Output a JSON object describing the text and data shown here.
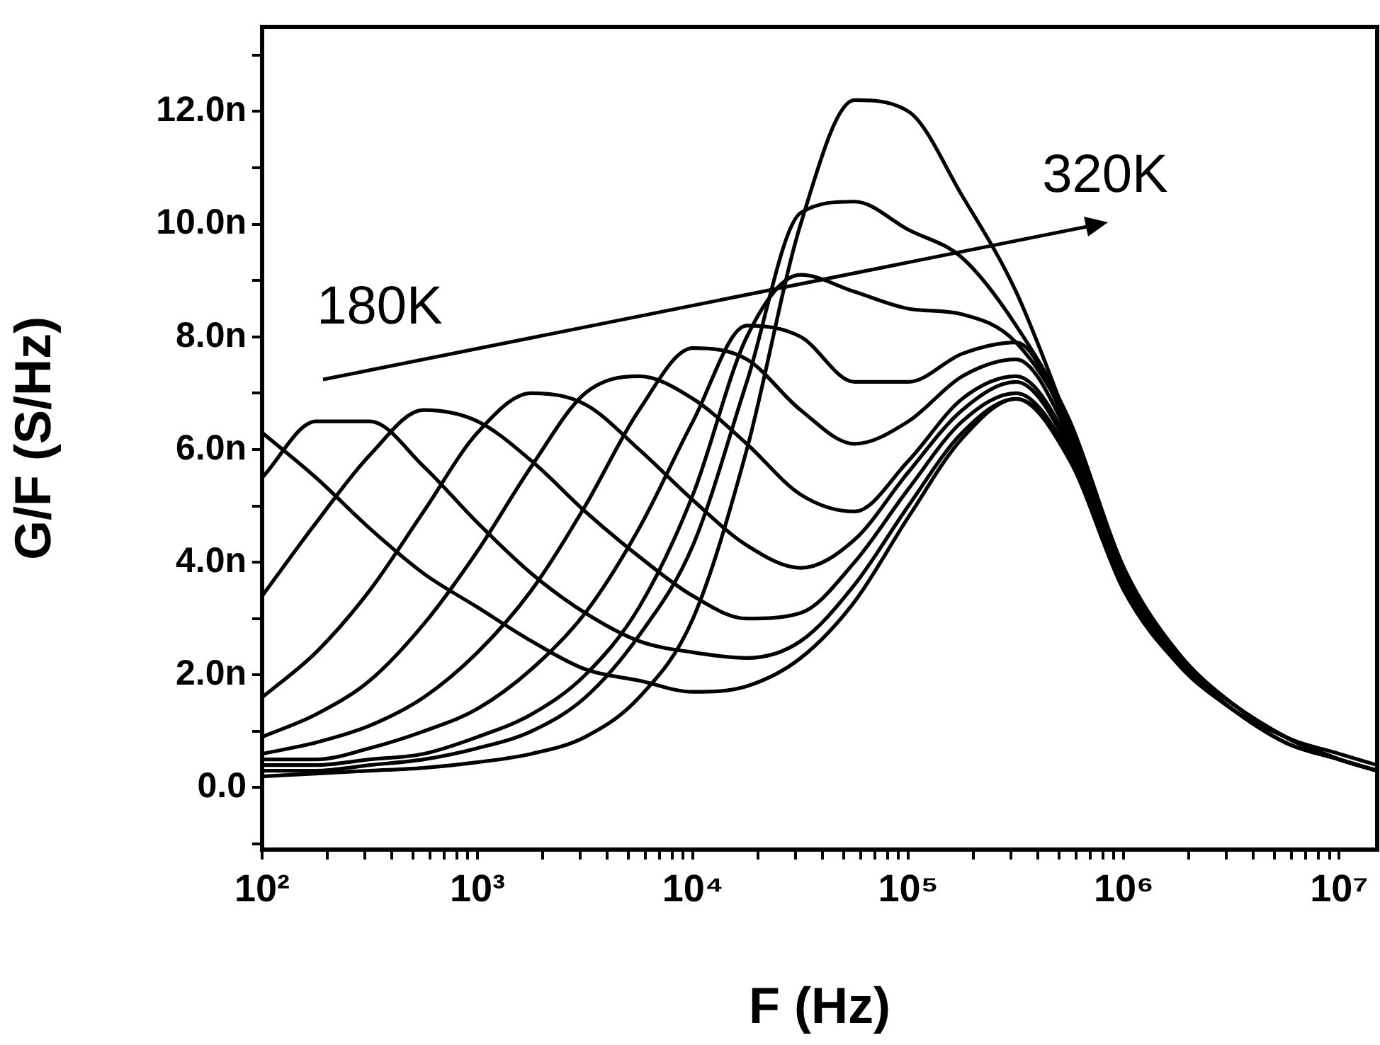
{
  "chart_data": {
    "type": "line",
    "xlabel": "F (Hz)",
    "ylabel": "G/F (S/Hz)",
    "log": "x",
    "grid": false,
    "legend": false,
    "marker": "none",
    "x": [
      100,
      178,
      316,
      562,
      1000,
      1778,
      3162,
      5623,
      10000,
      17783,
      31623,
      56234,
      100000,
      177828,
      316228,
      562341,
      1000000,
      1778279,
      3162278,
      5623413,
      10000000,
      15000000
    ],
    "xlim": [
      100,
      15000000
    ],
    "ylim": [
      -1.1,
      13.5
    ],
    "xticks": [
      {
        "value": 100,
        "label": "10²"
      },
      {
        "value": 200,
        "label": null
      },
      {
        "value": 300,
        "label": null
      },
      {
        "value": 400,
        "label": null
      },
      {
        "value": 500,
        "label": null
      },
      {
        "value": 600,
        "label": null
      },
      {
        "value": 700,
        "label": null
      },
      {
        "value": 800,
        "label": null
      },
      {
        "value": 900,
        "label": null
      },
      {
        "value": 1000,
        "label": "10³"
      },
      {
        "value": 2000,
        "label": null
      },
      {
        "value": 3000,
        "label": null
      },
      {
        "value": 4000,
        "label": null
      },
      {
        "value": 5000,
        "label": null
      },
      {
        "value": 6000,
        "label": null
      },
      {
        "value": 7000,
        "label": null
      },
      {
        "value": 8000,
        "label": null
      },
      {
        "value": 9000,
        "label": null
      },
      {
        "value": 10000,
        "label": "10⁴"
      },
      {
        "value": 20000,
        "label": null
      },
      {
        "value": 30000,
        "label": null
      },
      {
        "value": 40000,
        "label": null
      },
      {
        "value": 50000,
        "label": null
      },
      {
        "value": 60000,
        "label": null
      },
      {
        "value": 70000,
        "label": null
      },
      {
        "value": 80000,
        "label": null
      },
      {
        "value": 90000,
        "label": null
      },
      {
        "value": 100000,
        "label": "10⁵"
      },
      {
        "value": 200000,
        "label": null
      },
      {
        "value": 300000,
        "label": null
      },
      {
        "value": 400000,
        "label": null
      },
      {
        "value": 500000,
        "label": null
      },
      {
        "value": 600000,
        "label": null
      },
      {
        "value": 700000,
        "label": null
      },
      {
        "value": 800000,
        "label": null
      },
      {
        "value": 900000,
        "label": null
      },
      {
        "value": 1000000,
        "label": "10⁶"
      },
      {
        "value": 2000000,
        "label": null
      },
      {
        "value": 3000000,
        "label": null
      },
      {
        "value": 4000000,
        "label": null
      },
      {
        "value": 5000000,
        "label": null
      },
      {
        "value": 6000000,
        "label": null
      },
      {
        "value": 7000000,
        "label": null
      },
      {
        "value": 8000000,
        "label": null
      },
      {
        "value": 9000000,
        "label": null
      },
      {
        "value": 10000000,
        "label": "10⁷"
      }
    ],
    "yticks": [
      {
        "value": -1,
        "label": null
      },
      {
        "value": 0,
        "label": "0.0"
      },
      {
        "value": 1,
        "label": null
      },
      {
        "value": 2,
        "label": "2.0n"
      },
      {
        "value": 3,
        "label": null
      },
      {
        "value": 4,
        "label": "4.0n"
      },
      {
        "value": 5,
        "label": null
      },
      {
        "value": 6,
        "label": "6.0n"
      },
      {
        "value": 7,
        "label": null
      },
      {
        "value": 8,
        "label": "8.0n"
      },
      {
        "value": 9,
        "label": null
      },
      {
        "value": 10,
        "label": "10.0n"
      },
      {
        "value": 11,
        "label": null
      },
      {
        "value": 12,
        "label": "12.0n"
      },
      {
        "value": 13,
        "label": null
      }
    ],
    "annotations": [
      "180K",
      "320K"
    ],
    "series": [
      {
        "color": "#000000",
        "values": [
          6.3,
          5.5,
          4.6,
          3.8,
          3.2,
          2.6,
          2.1,
          1.9,
          1.7,
          1.8,
          2.3,
          3.3,
          4.8,
          6.2,
          6.9,
          5.8,
          3.5,
          2.2,
          1.4,
          0.8,
          0.5,
          0.3
        ]
      },
      {
        "color": "#000000",
        "values": [
          5.5,
          6.5,
          6.5,
          5.7,
          4.7,
          3.8,
          3.1,
          2.6,
          2.4,
          2.3,
          2.6,
          3.6,
          5.0,
          6.3,
          6.9,
          5.9,
          3.6,
          2.2,
          1.4,
          0.8,
          0.5,
          0.3
        ]
      },
      {
        "color": "#000000",
        "values": [
          3.4,
          4.7,
          5.9,
          6.7,
          6.5,
          5.8,
          4.9,
          4.1,
          3.4,
          3.0,
          3.1,
          4.0,
          5.3,
          6.5,
          7.0,
          5.9,
          3.6,
          2.2,
          1.4,
          0.8,
          0.5,
          0.3
        ]
      },
      {
        "color": "#000000",
        "values": [
          1.6,
          2.4,
          3.5,
          4.9,
          6.3,
          7.0,
          6.8,
          6.0,
          5.1,
          4.3,
          3.9,
          4.4,
          5.6,
          6.7,
          7.2,
          6.0,
          3.6,
          2.3,
          1.4,
          0.9,
          0.5,
          0.3
        ]
      },
      {
        "color": "#000000",
        "values": [
          0.9,
          1.3,
          1.9,
          2.9,
          4.2,
          5.7,
          7.0,
          7.3,
          6.9,
          6.1,
          5.2,
          4.9,
          5.8,
          6.9,
          7.3,
          6.1,
          3.7,
          2.3,
          1.4,
          0.9,
          0.5,
          0.3
        ]
      },
      {
        "color": "#000000",
        "values": [
          0.6,
          0.8,
          1.1,
          1.6,
          2.4,
          3.5,
          5.0,
          6.7,
          7.8,
          7.6,
          6.7,
          6.1,
          6.5,
          7.3,
          7.6,
          6.2,
          3.7,
          2.3,
          1.5,
          0.9,
          0.5,
          0.3
        ]
      },
      {
        "color": "#000000",
        "values": [
          0.5,
          0.5,
          0.7,
          1.0,
          1.4,
          2.1,
          3.1,
          4.6,
          6.5,
          8.2,
          8.0,
          7.2,
          7.2,
          7.7,
          7.9,
          6.3,
          3.8,
          2.3,
          1.5,
          0.9,
          0.5,
          0.3
        ]
      },
      {
        "color": "#000000",
        "values": [
          0.4,
          0.4,
          0.5,
          0.6,
          0.9,
          1.3,
          2.0,
          3.2,
          5.2,
          8.0,
          9.1,
          8.8,
          8.5,
          8.4,
          7.9,
          6.4,
          3.8,
          2.3,
          1.5,
          0.9,
          0.5,
          0.3
        ]
      },
      {
        "color": "#000000",
        "values": [
          0.3,
          0.3,
          0.4,
          0.5,
          0.7,
          1.0,
          1.6,
          2.7,
          4.3,
          7.2,
          10.2,
          10.4,
          9.9,
          9.4,
          8.2,
          6.5,
          3.9,
          2.4,
          1.5,
          0.9,
          0.6,
          0.4
        ]
      },
      {
        "color": "#000000",
        "values": [
          0.2,
          0.25,
          0.3,
          0.35,
          0.45,
          0.6,
          0.9,
          1.6,
          3.0,
          6.0,
          10.0,
          12.2,
          12.0,
          10.5,
          8.8,
          6.4,
          3.9,
          2.4,
          1.5,
          0.9,
          0.5,
          0.3
        ]
      }
    ]
  }
}
